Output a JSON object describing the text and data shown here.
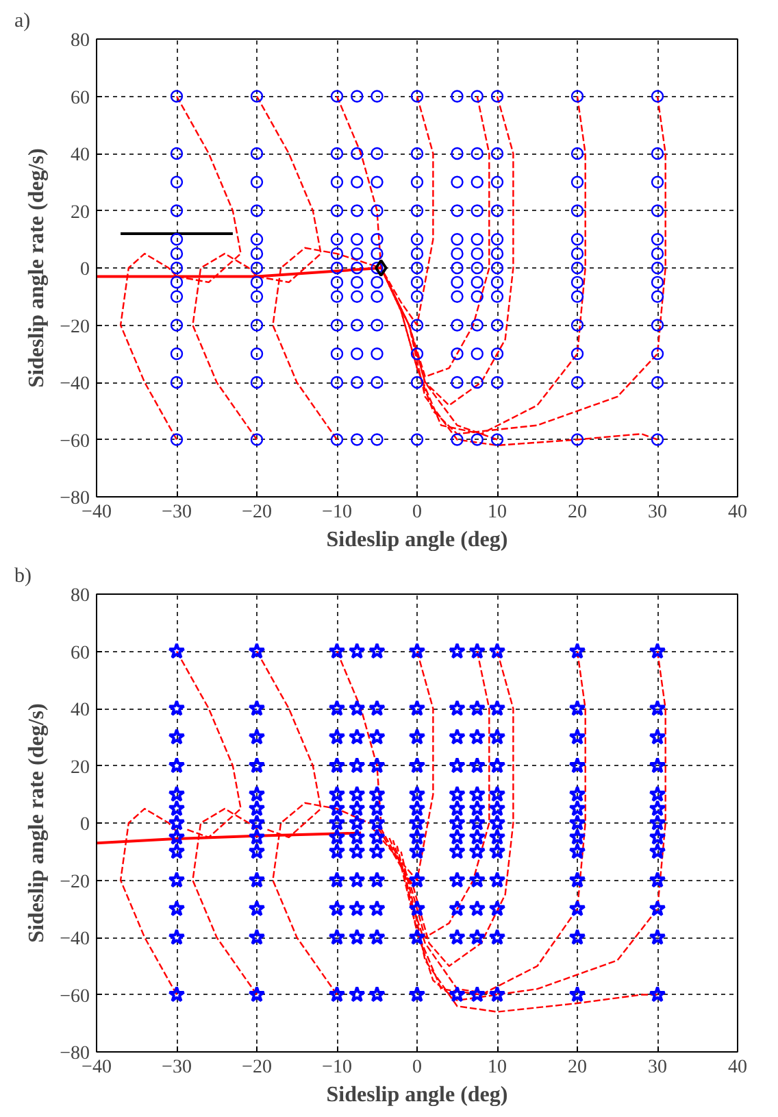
{
  "chart_data": [
    {
      "type": "line",
      "title": "a)",
      "xlabel": "Sideslip angle (deg)",
      "ylabel": "Sideslip angle rate (deg/s)",
      "xlim": [
        -40,
        40
      ],
      "ylim": [
        -80,
        80
      ],
      "xticks": [
        -40,
        -30,
        -20,
        -10,
        0,
        10,
        20,
        30,
        40
      ],
      "yticks": [
        -80,
        -60,
        -40,
        -20,
        0,
        20,
        40,
        60,
        80
      ],
      "grid": true,
      "series": [
        {
          "type": "line",
          "line_style": "dashed",
          "color": "#ff0000",
          "x": [
            30,
            31,
            31,
            30,
            25,
            15,
            5,
            2,
            0,
            -2,
            -4.5
          ],
          "values": [
            60,
            40,
            0,
            -30,
            -45,
            -55,
            -58,
            -50,
            -35,
            -15,
            0
          ]
        },
        {
          "type": "line",
          "line_style": "dashed",
          "color": "#ff0000",
          "x": [
            20,
            21,
            21,
            20,
            15,
            8,
            3,
            0,
            -2,
            -4.5
          ],
          "values": [
            60,
            40,
            0,
            -30,
            -48,
            -58,
            -55,
            -35,
            -15,
            0
          ]
        },
        {
          "type": "line",
          "line_style": "dashed",
          "color": "#ff0000",
          "x": [
            10,
            12,
            12,
            11,
            8,
            4,
            1,
            -1,
            -4.5
          ],
          "values": [
            60,
            40,
            0,
            -25,
            -40,
            -48,
            -40,
            -20,
            0
          ]
        },
        {
          "type": "line",
          "line_style": "dashed",
          "color": "#ff0000",
          "x": [
            7.5,
            9,
            9,
            7,
            4,
            1,
            -1,
            -4.5
          ],
          "values": [
            60,
            40,
            0,
            -20,
            -35,
            -38,
            -20,
            0
          ]
        },
        {
          "type": "line",
          "line_style": "dashed",
          "color": "#ff0000",
          "x": [
            0,
            2,
            2,
            0,
            -2,
            -4.5
          ],
          "values": [
            60,
            40,
            10,
            -20,
            -12,
            0
          ]
        },
        {
          "type": "line",
          "line_style": "dashed",
          "color": "#ff0000",
          "x": [
            -10,
            -7,
            -5,
            -4.5
          ],
          "values": [
            60,
            40,
            20,
            0
          ]
        },
        {
          "type": "line",
          "line_style": "dashed",
          "color": "#ff0000",
          "x": [
            -20,
            -16,
            -13,
            -12,
            -16,
            -20
          ],
          "values": [
            60,
            40,
            20,
            5,
            -5,
            -3
          ]
        },
        {
          "type": "line",
          "line_style": "dashed",
          "color": "#ff0000",
          "x": [
            -30,
            -26,
            -23,
            -22,
            -26,
            -30
          ],
          "values": [
            60,
            40,
            20,
            5,
            -5,
            -3
          ]
        },
        {
          "type": "line",
          "line_style": "dashed",
          "color": "#ff0000",
          "x": [
            -30,
            -34,
            -37,
            -36,
            -34,
            -31,
            -30
          ],
          "values": [
            -60,
            -40,
            -20,
            0,
            5,
            0,
            -3
          ]
        },
        {
          "type": "line",
          "line_style": "dashed",
          "color": "#ff0000",
          "x": [
            -20,
            -25,
            -28,
            -27,
            -24,
            -21,
            -20
          ],
          "values": [
            -60,
            -40,
            -20,
            0,
            5,
            0,
            -3
          ]
        },
        {
          "type": "line",
          "line_style": "dashed",
          "color": "#ff0000",
          "x": [
            -10,
            -15,
            -18,
            -17,
            -14,
            -10,
            -4.5
          ],
          "values": [
            -60,
            -40,
            -20,
            0,
            7,
            5,
            0
          ]
        },
        {
          "type": "line",
          "line_style": "dashed",
          "color": "#ff0000",
          "x": [
            10,
            5,
            1,
            -1,
            -4.5
          ],
          "values": [
            -60,
            -55,
            -40,
            -20,
            0
          ]
        },
        {
          "type": "line",
          "line_style": "dashed",
          "color": "#ff0000",
          "x": [
            30,
            28,
            20,
            10,
            5,
            1,
            -1,
            -4.5
          ],
          "values": [
            -60,
            -58,
            -60,
            -62,
            -60,
            -45,
            -20,
            0
          ]
        },
        {
          "type": "line",
          "line_style": "solid",
          "color": "#ff0000",
          "x": [
            -4.5,
            -20,
            -30,
            -40
          ],
          "values": [
            0,
            -3,
            -3,
            -3
          ]
        },
        {
          "type": "line",
          "line_style": "solid",
          "color": "#000000",
          "x": [
            -23,
            -37
          ],
          "values": [
            12,
            12
          ]
        },
        {
          "type": "scatter",
          "marker": "circle",
          "color": "#0000ff",
          "x": [
            -30,
            -30,
            -30,
            -30,
            -30,
            -30,
            -30,
            -30,
            -30,
            -30,
            -30,
            -30,
            -30,
            -20,
            -20,
            -20,
            -20,
            -20,
            -20,
            -20,
            -20,
            -20,
            -20,
            -20,
            -20,
            -20,
            -10,
            -10,
            -10,
            -10,
            -10,
            -10,
            -10,
            -10,
            -10,
            -10,
            -10,
            -10,
            -10,
            -7.5,
            -7.5,
            -7.5,
            -7.5,
            -7.5,
            -7.5,
            -7.5,
            -7.5,
            -7.5,
            -7.5,
            -7.5,
            -7.5,
            -7.5,
            -5,
            -5,
            -5,
            -5,
            -5,
            -5,
            -5,
            -5,
            -5,
            -5,
            -5,
            -5,
            -5,
            0,
            0,
            0,
            0,
            0,
            0,
            0,
            0,
            0,
            0,
            0,
            0,
            0,
            5,
            5,
            5,
            5,
            5,
            5,
            5,
            5,
            5,
            5,
            5,
            5,
            5,
            7.5,
            7.5,
            7.5,
            7.5,
            7.5,
            7.5,
            7.5,
            7.5,
            7.5,
            7.5,
            7.5,
            7.5,
            7.5,
            10,
            10,
            10,
            10,
            10,
            10,
            10,
            10,
            10,
            10,
            10,
            10,
            10,
            20,
            20,
            20,
            20,
            20,
            20,
            20,
            20,
            20,
            20,
            20,
            20,
            20,
            30,
            30,
            30,
            30,
            30,
            30,
            30,
            30,
            30,
            30,
            30,
            30,
            30
          ],
          "values": [
            60,
            40,
            30,
            20,
            10,
            5,
            0,
            -5,
            -10,
            -20,
            -30,
            -40,
            -60,
            60,
            40,
            30,
            20,
            10,
            5,
            0,
            -5,
            -10,
            -20,
            -30,
            -40,
            -60,
            60,
            40,
            30,
            20,
            10,
            5,
            0,
            -5,
            -10,
            -20,
            -30,
            -40,
            -60,
            60,
            40,
            30,
            20,
            10,
            5,
            0,
            -5,
            -10,
            -20,
            -30,
            -40,
            -60,
            60,
            40,
            30,
            20,
            10,
            5,
            0,
            -5,
            -10,
            -20,
            -30,
            -40,
            -60,
            60,
            40,
            30,
            20,
            10,
            5,
            0,
            -5,
            -10,
            -20,
            -30,
            -40,
            -60,
            60,
            40,
            30,
            20,
            10,
            5,
            0,
            -5,
            -10,
            -20,
            -30,
            -40,
            -60,
            60,
            40,
            30,
            20,
            10,
            5,
            0,
            -5,
            -10,
            -20,
            -30,
            -40,
            -60,
            60,
            40,
            30,
            20,
            10,
            5,
            0,
            -5,
            -10,
            -20,
            -30,
            -40,
            -60,
            60,
            40,
            30,
            20,
            10,
            5,
            0,
            -5,
            -10,
            -20,
            -30,
            -40,
            -60,
            60,
            40,
            30,
            20,
            10,
            5,
            0,
            -5,
            -10,
            -20,
            -30,
            -40,
            -60
          ]
        },
        {
          "type": "scatter",
          "marker": "diamond",
          "color": "#000000",
          "x": [
            -4.5
          ],
          "values": [
            0
          ]
        }
      ]
    },
    {
      "type": "line",
      "title": "b)",
      "xlabel": "Sideslip angle (deg)",
      "ylabel": "Sideslip angle rate (deg/s)",
      "xlim": [
        -40,
        40
      ],
      "ylim": [
        -80,
        80
      ],
      "xticks": [
        -40,
        -30,
        -20,
        -10,
        0,
        10,
        20,
        30,
        40
      ],
      "yticks": [
        -80,
        -60,
        -40,
        -20,
        0,
        20,
        40,
        60,
        80
      ],
      "grid": true,
      "series": [
        {
          "line_style": "dashed",
          "color": "#ff0000",
          "x": [
            30,
            31,
            31,
            30,
            25,
            15,
            5,
            2,
            0,
            -2,
            -3
          ],
          "values": [
            60,
            40,
            0,
            -30,
            -48,
            -58,
            -62,
            -55,
            -38,
            -15,
            -6
          ]
        },
        {
          "line_style": "dashed",
          "color": "#ff0000",
          "x": [
            20,
            21,
            21,
            20,
            15,
            8,
            3,
            0,
            -1.5,
            -3.5
          ],
          "values": [
            60,
            40,
            0,
            -30,
            -50,
            -60,
            -58,
            -38,
            -18,
            -5
          ]
        },
        {
          "line_style": "dashed",
          "color": "#ff0000",
          "x": [
            10,
            12,
            12,
            11,
            8,
            4,
            1.5,
            -0.5,
            -4.5
          ],
          "values": [
            60,
            40,
            0,
            -25,
            -42,
            -50,
            -42,
            -22,
            -2
          ]
        },
        {
          "line_style": "dashed",
          "color": "#ff0000",
          "x": [
            7.5,
            9,
            9,
            7,
            4,
            1,
            -1,
            -5
          ],
          "values": [
            60,
            40,
            0,
            -20,
            -35,
            -40,
            -20,
            -1
          ]
        },
        {
          "line_style": "dashed",
          "color": "#ff0000",
          "x": [
            0,
            2,
            2,
            0,
            -2.5,
            -5.5
          ],
          "values": [
            60,
            40,
            10,
            -20,
            -12,
            -2
          ]
        },
        {
          "line_style": "dashed",
          "color": "#ff0000",
          "x": [
            -10,
            -7,
            -5,
            -4.5
          ],
          "values": [
            60,
            40,
            20,
            0
          ]
        },
        {
          "line_style": "dashed",
          "color": "#ff0000",
          "x": [
            -20,
            -16,
            -13,
            -12,
            -16,
            -19
          ],
          "values": [
            60,
            40,
            20,
            5,
            -5,
            -2
          ]
        },
        {
          "line_style": "dashed",
          "color": "#ff0000",
          "x": [
            -30,
            -26,
            -23,
            -22,
            -26,
            -29
          ],
          "values": [
            60,
            40,
            20,
            5,
            -5,
            -2
          ]
        },
        {
          "line_style": "dashed",
          "color": "#ff0000",
          "x": [
            -30,
            -34,
            -37,
            -36,
            -34,
            -31,
            -30
          ],
          "values": [
            -60,
            -40,
            -20,
            0,
            5,
            0,
            -3
          ]
        },
        {
          "line_style": "dashed",
          "color": "#ff0000",
          "x": [
            -20,
            -25,
            -28,
            -27,
            -24,
            -21,
            -20
          ],
          "values": [
            -60,
            -40,
            -20,
            0,
            5,
            0,
            -2
          ]
        },
        {
          "line_style": "dashed",
          "color": "#ff0000",
          "x": [
            -10,
            -15,
            -18,
            -17,
            -14,
            -10,
            -6
          ],
          "values": [
            -60,
            -40,
            -20,
            0,
            7,
            5,
            0
          ]
        },
        {
          "line_style": "dashed",
          "color": "#ff0000",
          "x": [
            10,
            5,
            1,
            -1,
            -2.5
          ],
          "values": [
            -60,
            -58,
            -42,
            -25,
            -8
          ]
        },
        {
          "line_style": "dashed",
          "color": "#ff0000",
          "x": [
            30,
            28,
            20,
            10,
            5,
            1,
            -0.5,
            -2
          ],
          "values": [
            -60,
            -60,
            -63,
            -66,
            -64,
            -48,
            -28,
            -10
          ]
        },
        {
          "line_style": "solid",
          "color": "#ff0000",
          "x": [
            -7,
            -20,
            -30,
            -40
          ],
          "values": [
            -3.5,
            -4.5,
            -5.5,
            -7
          ]
        },
        {
          "type": "scatter",
          "marker": "star",
          "color": "#0000ff",
          "x": [
            -30,
            -30,
            -30,
            -30,
            -30,
            -30,
            -30,
            -30,
            -30,
            -30,
            -30,
            -30,
            -30,
            -20,
            -20,
            -20,
            -20,
            -20,
            -20,
            -20,
            -20,
            -20,
            -20,
            -20,
            -20,
            -20,
            -10,
            -10,
            -10,
            -10,
            -10,
            -10,
            -10,
            -10,
            -10,
            -10,
            -10,
            -10,
            -10,
            -7.5,
            -7.5,
            -7.5,
            -7.5,
            -7.5,
            -7.5,
            -7.5,
            -7.5,
            -7.5,
            -7.5,
            -7.5,
            -7.5,
            -7.5,
            -5,
            -5,
            -5,
            -5,
            -5,
            -5,
            -5,
            -5,
            -5,
            -5,
            -5,
            -5,
            -5,
            0,
            0,
            0,
            0,
            0,
            0,
            0,
            0,
            0,
            0,
            0,
            0,
            0,
            5,
            5,
            5,
            5,
            5,
            5,
            5,
            5,
            5,
            5,
            5,
            5,
            5,
            7.5,
            7.5,
            7.5,
            7.5,
            7.5,
            7.5,
            7.5,
            7.5,
            7.5,
            7.5,
            7.5,
            7.5,
            7.5,
            10,
            10,
            10,
            10,
            10,
            10,
            10,
            10,
            10,
            10,
            10,
            10,
            10,
            20,
            20,
            20,
            20,
            20,
            20,
            20,
            20,
            20,
            20,
            20,
            20,
            20,
            30,
            30,
            30,
            30,
            30,
            30,
            30,
            30,
            30,
            30,
            30,
            30,
            30
          ],
          "values": [
            60,
            40,
            30,
            20,
            10,
            5,
            0,
            -5,
            -10,
            -20,
            -30,
            -40,
            -60,
            60,
            40,
            30,
            20,
            10,
            5,
            0,
            -5,
            -10,
            -20,
            -30,
            -40,
            -60,
            60,
            40,
            30,
            20,
            10,
            5,
            0,
            -5,
            -10,
            -20,
            -30,
            -40,
            -60,
            60,
            40,
            30,
            20,
            10,
            5,
            0,
            -5,
            -10,
            -20,
            -30,
            -40,
            -60,
            60,
            40,
            30,
            20,
            10,
            5,
            0,
            -5,
            -10,
            -20,
            -30,
            -40,
            -60,
            60,
            40,
            30,
            20,
            10,
            5,
            0,
            -5,
            -10,
            -20,
            -30,
            -40,
            -60,
            60,
            40,
            30,
            20,
            10,
            5,
            0,
            -5,
            -10,
            -20,
            -30,
            -40,
            -60,
            60,
            40,
            30,
            20,
            10,
            5,
            0,
            -5,
            -10,
            -20,
            -30,
            -40,
            -60,
            60,
            40,
            30,
            20,
            10,
            5,
            0,
            -5,
            -10,
            -20,
            -30,
            -40,
            -60,
            60,
            40,
            30,
            20,
            10,
            5,
            0,
            -5,
            -10,
            -20,
            -30,
            -40,
            -60,
            60,
            40,
            30,
            20,
            10,
            5,
            0,
            -5,
            -10,
            -20,
            -30,
            -40,
            -60
          ]
        }
      ]
    }
  ]
}
